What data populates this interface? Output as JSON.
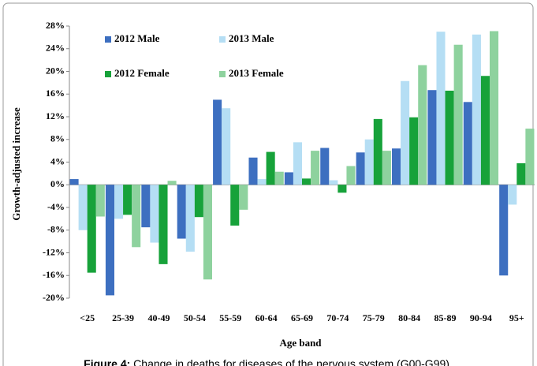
{
  "chart_data": {
    "type": "bar",
    "caption_label": "Figure 4:",
    "caption": "Change in deaths for diseases of the nervous system (G00-G99).",
    "x_label": "Age band",
    "y_label": "Growth-adjusted increase",
    "categories": [
      "<25",
      "25-39",
      "40-49",
      "50-54",
      "55-59",
      "60-64",
      "65-69",
      "70-74",
      "75-79",
      "80-84",
      "85-89",
      "90-94",
      "95+"
    ],
    "series": [
      {
        "name": "2012 Male",
        "color": "#3d6fc0",
        "values": [
          1.0,
          -19.5,
          -7.5,
          -9.5,
          15.0,
          4.8,
          2.2,
          6.5,
          5.7,
          6.4,
          16.7,
          14.6,
          -16.0
        ]
      },
      {
        "name": "2013 Male",
        "color": "#b5def4",
        "values": [
          -8.0,
          -6.0,
          -10.2,
          -11.8,
          13.5,
          1.0,
          7.5,
          0.8,
          8.0,
          18.3,
          27.0,
          26.5,
          -3.5
        ]
      },
      {
        "name": "2012 Female",
        "color": "#17a23a",
        "values": [
          -15.5,
          -5.3,
          -14.0,
          -5.7,
          -7.2,
          5.8,
          1.1,
          -1.4,
          11.6,
          11.9,
          16.6,
          19.2,
          3.8
        ]
      },
      {
        "name": "2013 Female",
        "color": "#8ed29e",
        "values": [
          -5.6,
          -11.0,
          0.7,
          -16.7,
          -4.4,
          2.3,
          6.0,
          3.3,
          6.0,
          21.1,
          24.7,
          27.1,
          9.9
        ]
      }
    ],
    "ylim": [
      -20,
      28
    ],
    "yticks": [
      {
        "value": -20,
        "label": "-20%"
      },
      {
        "value": -16,
        "label": "-16%"
      },
      {
        "value": -12,
        "label": "-12%"
      },
      {
        "value": -8,
        "label": "-8%"
      },
      {
        "value": -4,
        "label": "-4%"
      },
      {
        "value": 0,
        "label": "0%"
      },
      {
        "value": 4,
        "label": "4%"
      },
      {
        "value": 8,
        "label": "8%"
      },
      {
        "value": 12,
        "label": "12%"
      },
      {
        "value": 16,
        "label": "16%"
      },
      {
        "value": 20,
        "label": "20%"
      },
      {
        "value": 24,
        "label": "24%"
      },
      {
        "value": 28,
        "label": "28%"
      }
    ],
    "legend": "upper left"
  }
}
